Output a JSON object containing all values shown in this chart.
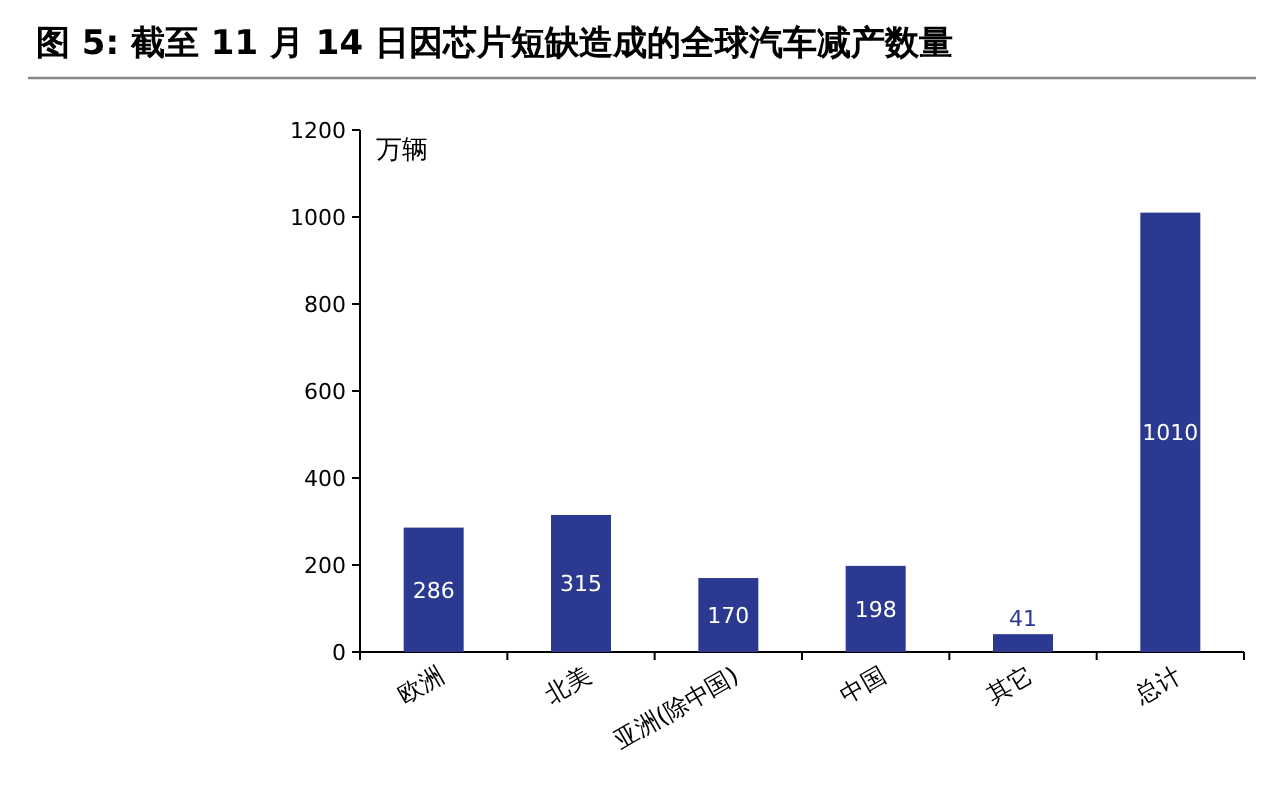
{
  "chart_data": {
    "type": "bar",
    "title": "图 5:  截至 11 月 14 日因芯片短缺造成的全球汽车减产数量",
    "ylabel": "万辆",
    "categories": [
      "欧洲",
      "北美",
      "亚洲(除中国)",
      "中国",
      "其它",
      "总计"
    ],
    "values": [
      286,
      315,
      170,
      198,
      41,
      1010
    ],
    "color": "#2b3990",
    "ylim": [
      0,
      1200
    ],
    "yticks": [
      0,
      200,
      400,
      600,
      800,
      1000,
      1200
    ],
    "data_labels": true
  }
}
